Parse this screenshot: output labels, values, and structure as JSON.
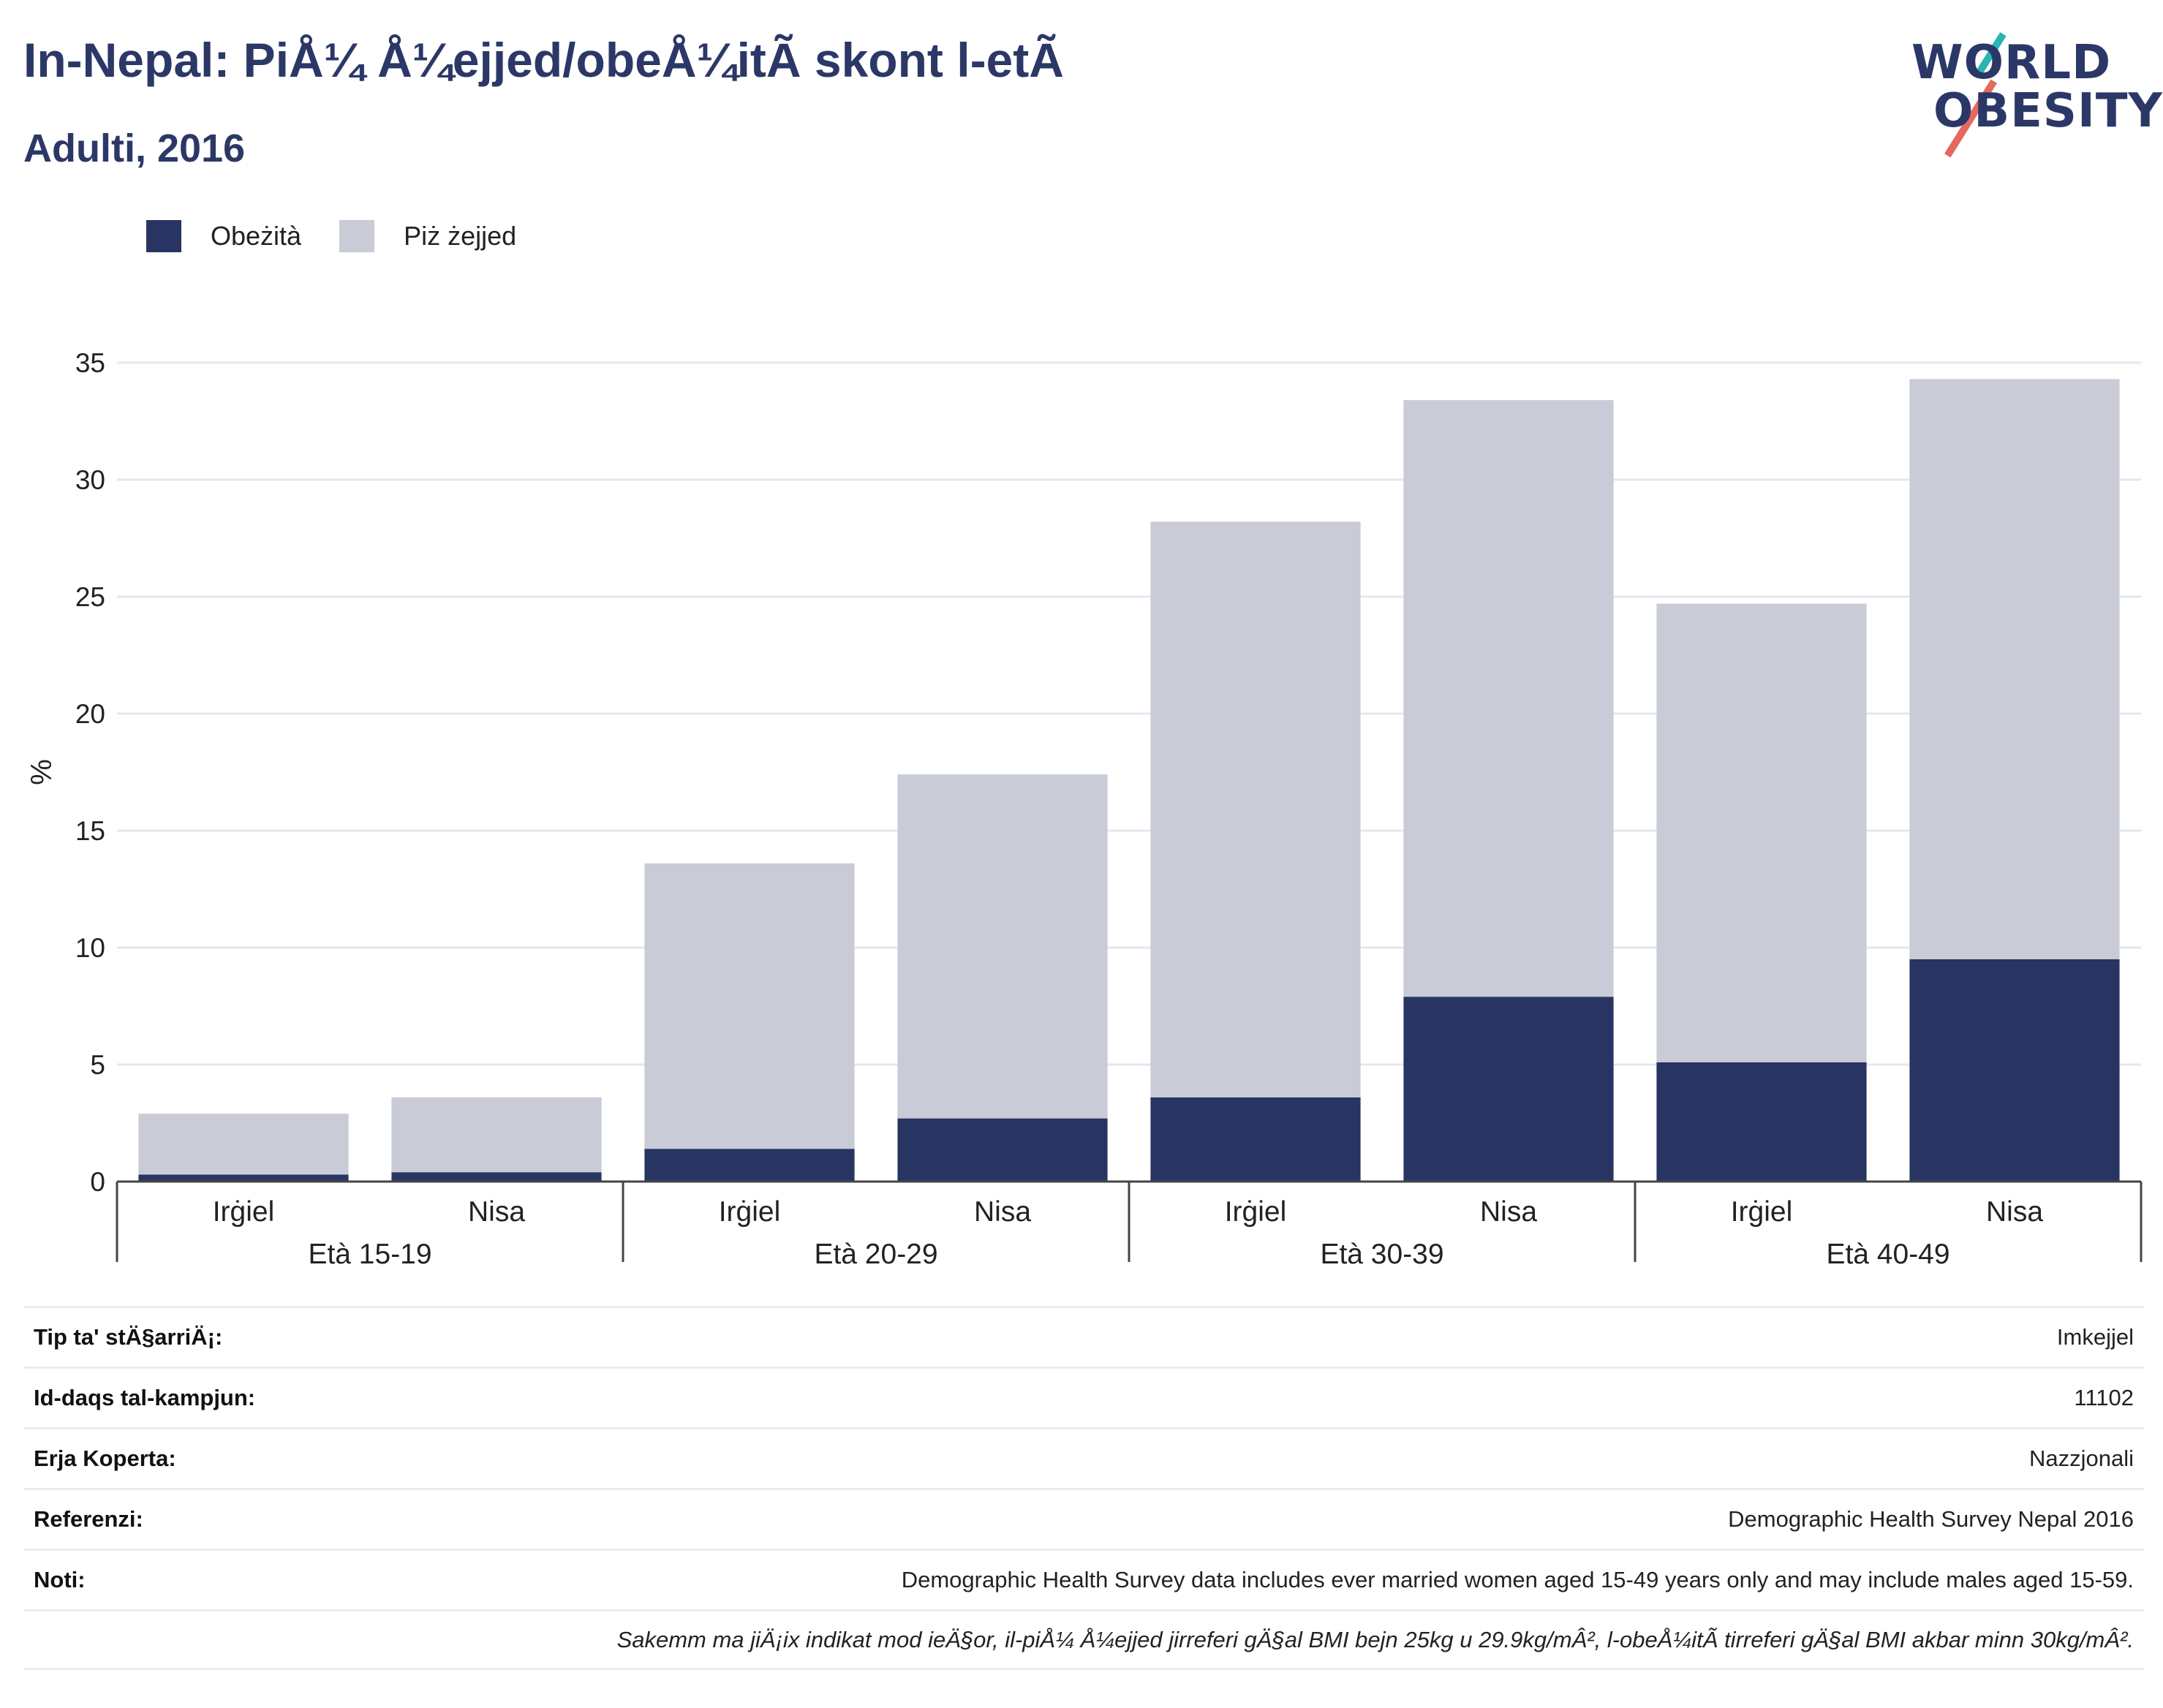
{
  "title": "In-Nepal: PiÅ¼ Å¼ejjed/obeÅ¼itÃ  skont l-etÃ",
  "subtitle": "Adulti, 2016",
  "logo": {
    "line1": "WORLD",
    "line2": "OBESITY"
  },
  "colors": {
    "obese": "#283562",
    "overweight": "#c9cbd6",
    "title": "#2b3867",
    "grid": "#e6e7ee"
  },
  "legend": [
    {
      "label": "Obeżità",
      "color": "#283562"
    },
    {
      "label": "Piż żejjed",
      "color": "#c9cbd6"
    }
  ],
  "chart_data": {
    "type": "bar",
    "stacked": true,
    "ylabel": "%",
    "ylim": [
      0,
      35
    ],
    "yticks": [
      0,
      5,
      10,
      15,
      20,
      25,
      30,
      35
    ],
    "grid": true,
    "legend_position": "top-left",
    "groups": [
      "Età 15-19",
      "Età 20-29",
      "Età 30-39",
      "Età 40-49"
    ],
    "categories": [
      "Irġiel",
      "Nisa",
      "Irġiel",
      "Nisa",
      "Irġiel",
      "Nisa",
      "Irġiel",
      "Nisa"
    ],
    "series": [
      {
        "name": "Obeżità",
        "values": [
          0.3,
          0.4,
          1.4,
          2.7,
          3.6,
          7.9,
          5.1,
          9.5
        ]
      },
      {
        "name": "Piż żejjed",
        "values": [
          2.6,
          3.2,
          12.2,
          14.7,
          24.6,
          25.5,
          19.6,
          24.8
        ]
      }
    ]
  },
  "info": [
    {
      "label": "Tip ta' stÄ§arriÄ¡:",
      "value": "Imkejjel"
    },
    {
      "label": "Id-daqs tal-kampjun:",
      "value": "11102"
    },
    {
      "label": "Erja Koperta:",
      "value": "Nazzjonali"
    },
    {
      "label": "Referenzi:",
      "value": "Demographic Health Survey Nepal 2016"
    },
    {
      "label": "Noti:",
      "value": "Demographic Health Survey data includes ever married women aged 15-49 years only and may include males aged 15-59."
    }
  ],
  "footnote": "Sakemm ma jiÄ¡ix indikat mod ieÄ§or, il-piÅ¼ Å¼ejjed jirreferi gÄ§al BMI bejn 25kg u 29.9kg/mÂ², l-obeÅ¼itÃ  tirreferi gÄ§al BMI akbar minn 30kg/mÂ²."
}
